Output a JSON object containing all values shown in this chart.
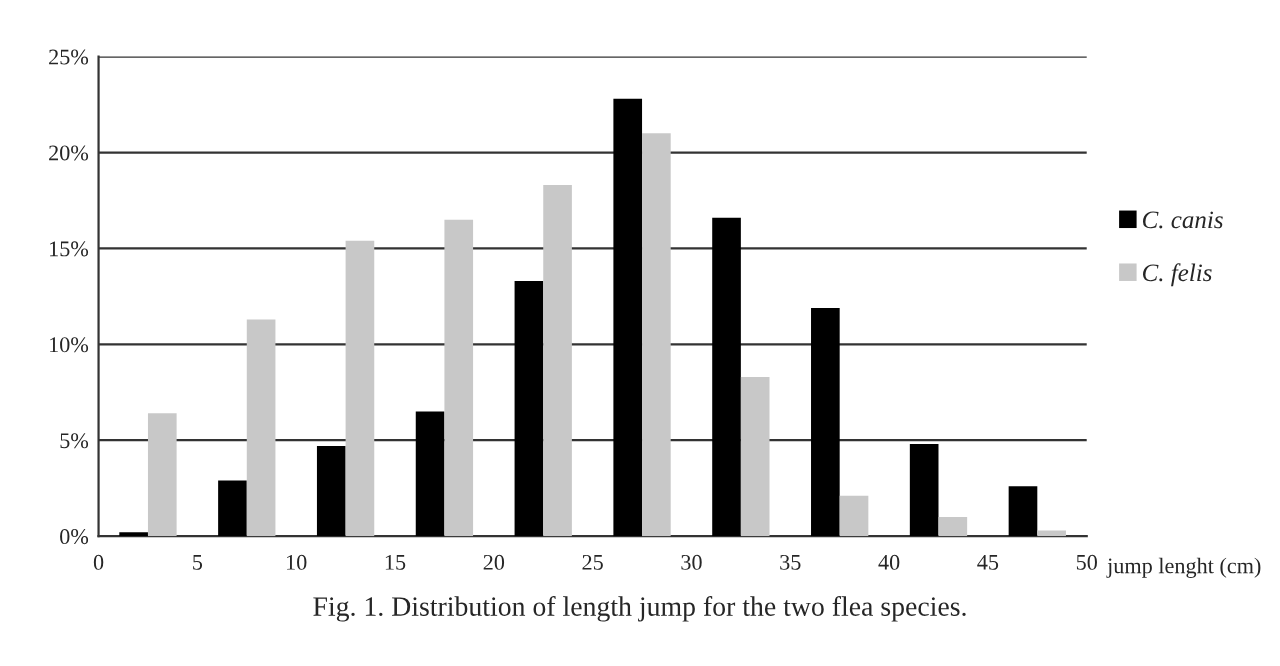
{
  "chart_data": {
    "type": "bar",
    "title": "Fig. 1. Distribution of length jump for the two flea species.",
    "xlabel": "jump lenght (cm)",
    "x": [
      2.5,
      7.5,
      12.5,
      17.5,
      22.5,
      27.5,
      32.5,
      37.5,
      42.5,
      47.5
    ],
    "series": [
      {
        "name": "C. canis",
        "color": "#000000",
        "values": [
          0.2,
          2.9,
          4.7,
          6.5,
          13.3,
          22.8,
          16.6,
          11.9,
          4.8,
          2.6
        ]
      },
      {
        "name": "C. felis",
        "color": "#c8c8c8",
        "values": [
          6.4,
          11.3,
          15.4,
          16.5,
          18.3,
          21.0,
          8.3,
          2.1,
          1.0,
          0.3
        ]
      }
    ],
    "xlim": [
      0,
      50
    ],
    "xticks": [
      0,
      5,
      10,
      15,
      20,
      25,
      30,
      35,
      40,
      45,
      50
    ],
    "ylim": [
      0,
      25
    ],
    "yticks": [
      {
        "value": 0,
        "label": "0%"
      },
      {
        "value": 5,
        "label": "5%"
      },
      {
        "value": 10,
        "label": "10%"
      },
      {
        "value": 15,
        "label": "15%"
      },
      {
        "value": 20,
        "label": "20%"
      },
      {
        "value": 25,
        "label": "25%"
      }
    ],
    "grid": "y",
    "legend": "right"
  }
}
